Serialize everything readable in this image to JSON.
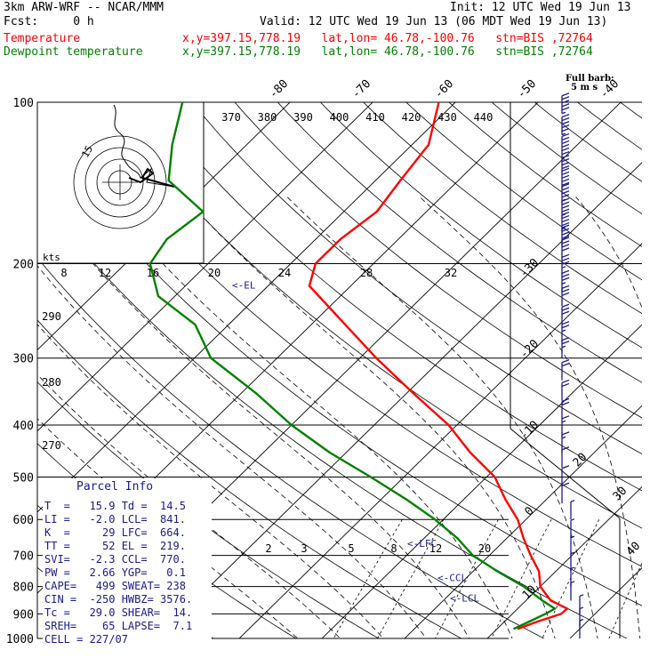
{
  "header": {
    "model": "3km ARW-WRF -- NCAR/MMM",
    "init": "Init: 12 UTC Wed 19 Jun 13",
    "fcst": "Fcst:     0 h",
    "valid": "Valid: 12 UTC Wed 19 Jun 13 (06 MDT Wed 19 Jun 13)",
    "temp_label": "Temperature",
    "temp_info": "x,y=397.15,778.19   lat,lon= 46.78,-100.76   stn=BIS ,72764",
    "dew_label": "Dewpoint temperature",
    "dew_info": "x,y=397.15,778.19   lat,lon= 46.78,-100.76   stn=BIS ,72764",
    "barb_legend_1": "Full barb:",
    "barb_legend_2": "5 m s",
    "colors": {
      "temperature": "#ff0000",
      "dewpoint": "#008000",
      "parcel_text": "#1a1a8c",
      "header_red": "#ff0000",
      "header_green": "#008000"
    }
  },
  "parcel": {
    "title": "Parcel Info",
    "rows": [
      "T  =   15.9 Td =  14.5",
      "LI =   -2.0 LCL=  841.",
      "K  =     29 LFC=  664.",
      "TT =     52 EL =  219.",
      "SVI=   -2.3 CCL=  770.",
      "PW =   2.66 YGP=   0.1",
      "CAPE=   499 SWEAT= 238",
      "CIN =  -250 HWBZ= 3576.",
      "Tc =   29.0 SHEAR=  14.",
      "SREH=    65 LAPSE=  7.1",
      "CELL = 227/07"
    ]
  },
  "chart_data": {
    "type": "line",
    "title": "",
    "xlabel": "",
    "ylabel": "",
    "pressure_levels": [
      100,
      200,
      300,
      400,
      500,
      600,
      700,
      800,
      900,
      1000
    ],
    "pressure_labels": [
      "100",
      "200",
      "300",
      "400",
      "500",
      "600",
      "700",
      "800",
      "900",
      "1000"
    ],
    "isotherm_labels": [
      "-80",
      "-70",
      "-60",
      "-50",
      "-40",
      "-30",
      "-20",
      "-10",
      "0",
      "10",
      "20",
      "30",
      "40"
    ],
    "isotherm_values": [
      -80,
      -70,
      -60,
      -50,
      -40,
      -30,
      -20,
      -10,
      0,
      10,
      20,
      30,
      40
    ],
    "theta_labels": [
      "370",
      "380",
      "390",
      "400",
      "410",
      "420",
      "430",
      "440"
    ],
    "theta_low_labels": [
      "290",
      "280",
      "270"
    ],
    "mixing_labels": [
      "2",
      "3",
      "5",
      "8",
      "12",
      "20"
    ],
    "hodo_speed_labels": [
      "8",
      "12",
      "16",
      "20",
      "24",
      "28",
      "32"
    ],
    "hodo_units": "kts",
    "hodo_ring_label": "15",
    "parcel_levels": [
      {
        "label": "<-EL",
        "p": 219
      },
      {
        "label": "<-LFC",
        "p": 664
      },
      {
        "label": "<-CCL",
        "p": 770
      },
      {
        "label": "<-LCL",
        "p": 841
      }
    ],
    "series": [
      {
        "name": "Temperature",
        "color": "#ff0000",
        "points": [
          [
            100,
            -62
          ],
          [
            120,
            -58
          ],
          [
            140,
            -57
          ],
          [
            160,
            -56
          ],
          [
            180,
            -57
          ],
          [
            200,
            -57
          ],
          [
            220,
            -55
          ],
          [
            250,
            -48
          ],
          [
            300,
            -38
          ],
          [
            350,
            -29
          ],
          [
            400,
            -21
          ],
          [
            450,
            -15
          ],
          [
            500,
            -9
          ],
          [
            550,
            -5
          ],
          [
            600,
            -1
          ],
          [
            650,
            2
          ],
          [
            700,
            5
          ],
          [
            750,
            8
          ],
          [
            800,
            10
          ],
          [
            850,
            13
          ],
          [
            880,
            16
          ],
          [
            900,
            15.9
          ],
          [
            930,
            14
          ],
          [
            960,
            12.5
          ]
        ]
      },
      {
        "name": "Dewpoint temperature",
        "color": "#008000",
        "points": [
          [
            100,
            -93
          ],
          [
            120,
            -89
          ],
          [
            140,
            -85
          ],
          [
            160,
            -77
          ],
          [
            180,
            -78
          ],
          [
            200,
            -77
          ],
          [
            230,
            -72
          ],
          [
            260,
            -64
          ],
          [
            300,
            -58
          ],
          [
            350,
            -48
          ],
          [
            400,
            -40
          ],
          [
            450,
            -32
          ],
          [
            500,
            -24
          ],
          [
            550,
            -17
          ],
          [
            600,
            -11
          ],
          [
            650,
            -6
          ],
          [
            700,
            -2
          ],
          [
            750,
            3
          ],
          [
            800,
            8
          ],
          [
            850,
            12
          ],
          [
            880,
            14.5
          ],
          [
            900,
            14
          ],
          [
            930,
            13
          ],
          [
            960,
            12
          ]
        ]
      }
    ],
    "wind_barbs": [
      {
        "p": 105,
        "speed": 55
      },
      {
        "p": 115,
        "speed": 55
      },
      {
        "p": 125,
        "speed": 50
      },
      {
        "p": 135,
        "speed": 50
      },
      {
        "p": 145,
        "speed": 50
      },
      {
        "p": 155,
        "speed": 45
      },
      {
        "p": 165,
        "speed": 45
      },
      {
        "p": 175,
        "speed": 45
      },
      {
        "p": 185,
        "speed": 40
      },
      {
        "p": 195,
        "speed": 40
      },
      {
        "p": 210,
        "speed": 35
      },
      {
        "p": 225,
        "speed": 35
      },
      {
        "p": 240,
        "speed": 30
      },
      {
        "p": 260,
        "speed": 30
      },
      {
        "p": 280,
        "speed": 25
      },
      {
        "p": 300,
        "speed": 25
      },
      {
        "p": 330,
        "speed": 20
      },
      {
        "p": 360,
        "speed": 20
      },
      {
        "p": 390,
        "speed": 20
      },
      {
        "p": 420,
        "speed": 15
      },
      {
        "p": 450,
        "speed": 15
      },
      {
        "p": 480,
        "speed": 10
      },
      {
        "p": 520,
        "speed": 10
      },
      {
        "p": 560,
        "speed": 10
      },
      {
        "p": 600,
        "speed": 5
      },
      {
        "p": 650,
        "speed": 5
      },
      {
        "p": 700,
        "speed": 5
      },
      {
        "p": 750,
        "speed": 5
      },
      {
        "p": 800,
        "speed": 5
      },
      {
        "p": 850,
        "speed": 5
      },
      {
        "p": 900,
        "speed": 5
      },
      {
        "p": 950,
        "speed": 5
      },
      {
        "p": 1000,
        "speed": 5
      }
    ]
  }
}
